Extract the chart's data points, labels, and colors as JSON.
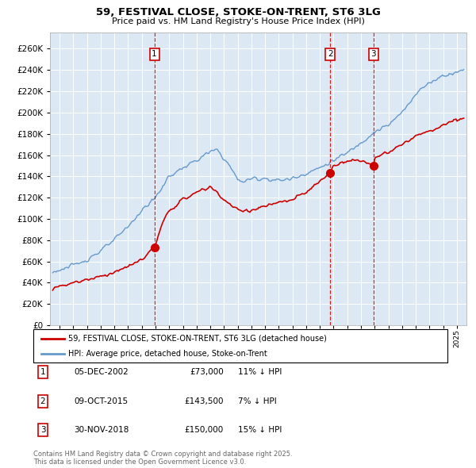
{
  "title": "59, FESTIVAL CLOSE, STOKE-ON-TRENT, ST6 3LG",
  "subtitle": "Price paid vs. HM Land Registry's House Price Index (HPI)",
  "plot_bg_color": "#dce9f5",
  "ylim": [
    0,
    275000
  ],
  "yticks": [
    0,
    20000,
    40000,
    60000,
    80000,
    100000,
    120000,
    140000,
    160000,
    180000,
    200000,
    220000,
    240000,
    260000
  ],
  "xlim_start": 1995.3,
  "xlim_end": 2025.7,
  "sale_events": [
    {
      "number": 1,
      "date": "05-DEC-2002",
      "price": 73000,
      "hpi_note": "11% ↓ HPI",
      "x_year": 2002.92
    },
    {
      "number": 2,
      "date": "09-OCT-2015",
      "price": 143500,
      "hpi_note": "7% ↓ HPI",
      "x_year": 2015.75
    },
    {
      "number": 3,
      "date": "30-NOV-2018",
      "price": 150000,
      "hpi_note": "15% ↓ HPI",
      "x_year": 2018.92
    }
  ],
  "legend_line1": "59, FESTIVAL CLOSE, STOKE-ON-TRENT, ST6 3LG (detached house)",
  "legend_line2": "HPI: Average price, detached house, Stoke-on-Trent",
  "footnote": "Contains HM Land Registry data © Crown copyright and database right 2025.\nThis data is licensed under the Open Government Licence v3.0.",
  "line_red_color": "#cc0000",
  "line_blue_color": "#6699cc",
  "marker_box_color": "#cc0000",
  "dashed_line_color": "#cc0000",
  "grid_color": "#ffffff",
  "hpi_knots_x": [
    1995.5,
    1996,
    1997,
    1998,
    1999,
    2000,
    2001,
    2002,
    2003,
    2004,
    2005,
    2006,
    2007,
    2007.5,
    2008,
    2008.5,
    2009,
    2009.5,
    2010,
    2011,
    2012,
    2013,
    2014,
    2015,
    2016,
    2017,
    2018,
    2019,
    2020,
    2021,
    2022,
    2023,
    2024,
    2025,
    2025.5
  ],
  "hpi_knots_y": [
    50000,
    52000,
    56000,
    62000,
    70000,
    80000,
    93000,
    108000,
    120000,
    140000,
    148000,
    155000,
    163000,
    165000,
    157000,
    148000,
    137000,
    135000,
    138000,
    138000,
    136000,
    138000,
    143000,
    148000,
    155000,
    162000,
    172000,
    182000,
    188000,
    200000,
    218000,
    228000,
    235000,
    238000,
    240000
  ],
  "red_knots_x": [
    1995.5,
    1996,
    1997,
    1998,
    1999,
    2000,
    2001,
    2002,
    2002.92,
    2003.5,
    2004,
    2005,
    2006,
    2007,
    2007.5,
    2008,
    2009,
    2010,
    2011,
    2012,
    2013,
    2014,
    2015,
    2015.75,
    2016,
    2017,
    2018,
    2018.92,
    2019,
    2020,
    2021,
    2022,
    2023,
    2024,
    2025,
    2025.5
  ],
  "red_knots_y": [
    35000,
    37000,
    40000,
    43000,
    46000,
    50000,
    55000,
    62000,
    73000,
    95000,
    108000,
    118000,
    125000,
    130000,
    125000,
    118000,
    108000,
    108000,
    112000,
    115000,
    118000,
    125000,
    135000,
    143500,
    150000,
    155000,
    155000,
    150000,
    158000,
    162000,
    170000,
    178000,
    182000,
    188000,
    193000,
    195000
  ]
}
